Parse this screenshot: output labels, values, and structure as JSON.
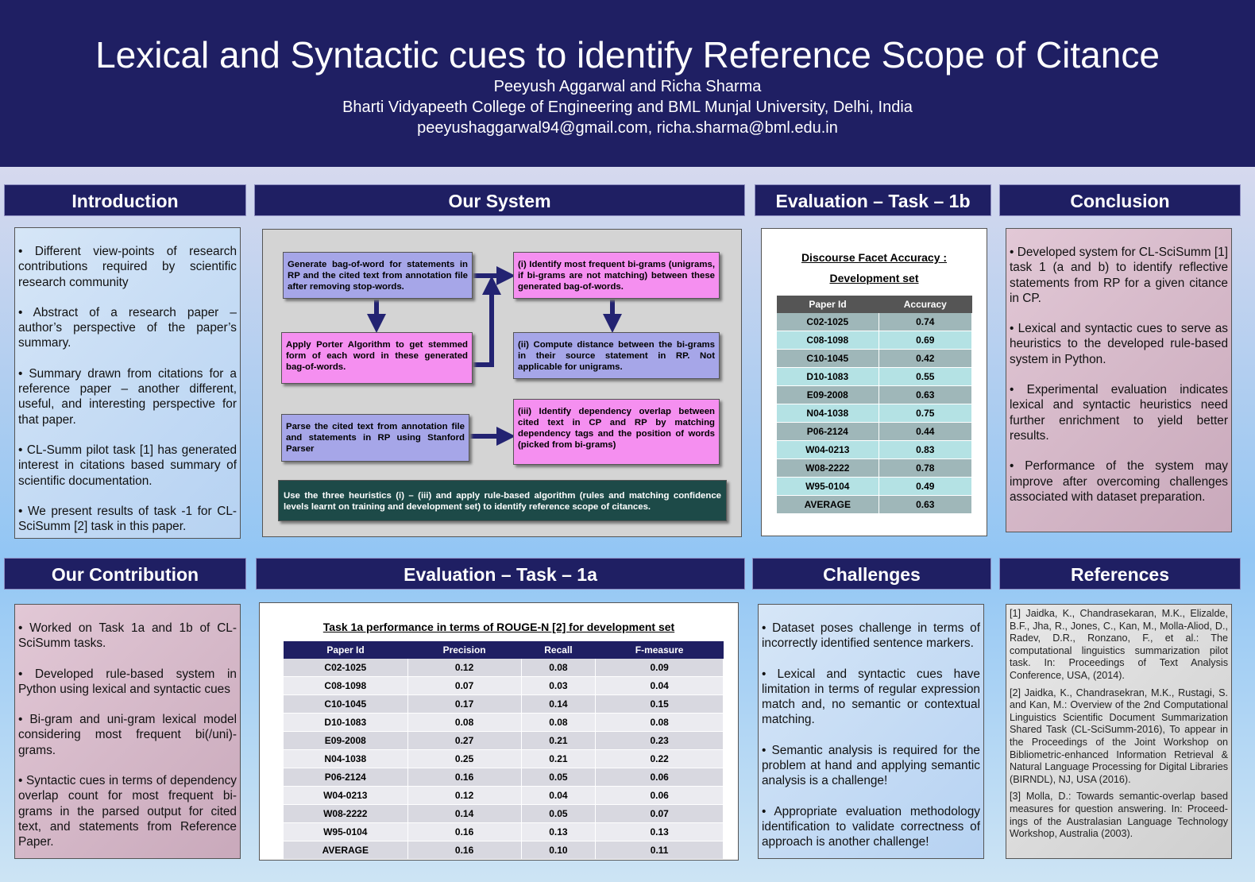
{
  "header": {
    "title": "Lexical and Syntactic cues to identify Reference Scope of Citance",
    "authors": "Peeyush Aggarwal  and Richa Sharma",
    "affiliation": "Bharti Vidyapeeth College of Engineering and  BML Munjal University, Delhi, India",
    "emails": "peeyushaggarwal94@gmail.com, richa.sharma@bml.edu.in"
  },
  "introduction": {
    "heading": "Introduction",
    "bullets": [
      "• Different view-points of research contributions required by scientific research community",
      "• Abstract of a research paper – author’s perspective of the paper’s summary.",
      "• Summary drawn from citations for a reference paper – another different, useful, and interesting perspective for that paper.",
      "• CL-Summ pilot task [1] has generated interest in citations based summary of scientific documentation.",
      "• We present results of task -1 for CL-SciSumm [2] task in this paper."
    ]
  },
  "our_system": {
    "heading": "Our System",
    "boxes": [
      "Generate bag-of-word for statements in RP and the cited text from annotation file after removing stop-words.",
      "(i) Identify most frequent bi-grams (unigrams, if bi-grams are not matching) between these generated bag-of-words.",
      "Apply Porter Algorithm to get stemmed form of each word in these generated bag-of-words.",
      "(ii) Compute distance between the bi-grams in their source statement in RP. Not applicable for unigrams.",
      "Parse the cited text from annotation file and statements in RP using Stanford Parser",
      "(iii) Identify dependency overlap between cited text in CP and RP by matching dependency tags and the position of words (picked from bi-grams)",
      "Use the three heuristics (i) – (iii) and apply rule-based algorithm (rules and matching confidence levels learnt on training and development set) to identify reference scope of citances."
    ]
  },
  "evaluation_1b": {
    "heading": "Evaluation – Task – 1b",
    "table_title": [
      "Discourse Facet Accuracy :",
      "Development set"
    ],
    "columns": [
      "Paper Id",
      "Accuracy"
    ],
    "rows": [
      [
        "C02-1025",
        "0.74"
      ],
      [
        "C08-1098",
        "0.69"
      ],
      [
        "C10-1045",
        "0.42"
      ],
      [
        "D10-1083",
        "0.55"
      ],
      [
        "E09-2008",
        "0.63"
      ],
      [
        "N04-1038",
        "0.75"
      ],
      [
        "P06-2124",
        "0.44"
      ],
      [
        "W04-0213",
        "0.83"
      ],
      [
        "W08-2222",
        "0.78"
      ],
      [
        "W95-0104",
        "0.49"
      ],
      [
        "AVERAGE",
        "0.63"
      ]
    ]
  },
  "conclusion": {
    "heading": "Conclusion",
    "bullets": [
      "• Developed system for CL-SciSumm [1] task 1 (a and b) to identify reflective statements from RP for a given citance in CP.",
      "• Lexical and syntactic cues to serve as heuristics to the developed rule-based system in Python.",
      "• Experimental evaluation indicates lexical and syntactic heuristics need further enrichment to yield better results.",
      "• Performance of the system may improve after overcoming challenges associated with dataset preparation."
    ]
  },
  "contribution": {
    "heading": "Our Contribution",
    "bullets": [
      "• Worked on Task 1a and 1b of CL-SciSumm tasks.",
      "• Developed rule-based system in Python using lexical and syntactic cues",
      "• Bi-gram and uni-gram lexical model considering most frequent bi(/uni)-grams.",
      "• Syntactic cues in terms of dependency overlap count for most frequent bi-grams in the parsed output for cited text, and statements from Reference Paper."
    ]
  },
  "evaluation_1a": {
    "heading": "Evaluation – Task – 1a",
    "table_title": "Task 1a performance in terms of ROUGE-N [2] for development set",
    "columns": [
      "Paper Id",
      "Precision",
      "Recall",
      "F-measure"
    ],
    "rows": [
      [
        "C02-1025",
        "0.12",
        "0.08",
        "0.09"
      ],
      [
        "C08-1098",
        "0.07",
        "0.03",
        "0.04"
      ],
      [
        "C10-1045",
        "0.17",
        "0.14",
        "0.15"
      ],
      [
        "D10-1083",
        "0.08",
        "0.08",
        "0.08"
      ],
      [
        "E09-2008",
        "0.27",
        "0.21",
        "0.23"
      ],
      [
        "N04-1038",
        "0.25",
        "0.21",
        "0.22"
      ],
      [
        "P06-2124",
        "0.16",
        "0.05",
        "0.06"
      ],
      [
        "W04-0213",
        "0.12",
        "0.04",
        "0.06"
      ],
      [
        "W08-2222",
        "0.14",
        "0.05",
        "0.07"
      ],
      [
        "W95-0104",
        "0.16",
        "0.13",
        "0.13"
      ],
      [
        "AVERAGE",
        "0.16",
        "0.10",
        "0.11"
      ]
    ]
  },
  "challenges": {
    "heading": "Challenges",
    "bullets": [
      "• Dataset poses challenge in terms of incorrectly identified sentence markers.",
      "• Lexical and syntactic cues have limitation in terms of regular expression match and, no semantic or contextual matching.",
      "• Semantic analysis is required for the problem at hand and applying semantic analysis is a challenge!",
      "• Appropriate evaluation methodology identification to validate correctness of approach is another challenge!"
    ]
  },
  "references": {
    "heading": "References",
    "items": [
      "[1] Jaidka, K., Chandrasekaran, M.K., Elizalde, B.F., Jha, R., Jones, C., Kan, M., Molla-Aliod, D., Radev, D.R., Ronzano, F., et al.: The computational linguistics summarization pilot task. In: Proceedings of Text Analysis Conference, USA, (2014).",
      "[2] Jaidka, K., Chandrasekran, M.K., Rustagi, S. and Kan, M.: Overview of the 2nd Computational Linguistics Scientific Document Summarization Shared Task (CL-SciSumm-2016), To appear in the Proceedings of the Joint Workshop on Bibliometric-enhanced Information Retrieval & Natural Language Processing for Digital Libraries (BIRNDL), NJ, USA (2016).",
      "[3] Molla, D.: Towards semantic-overlap based measures for question answering. In: Proceed-ings of the Australasian Language Technology Workshop, Australia (2003)."
    ]
  }
}
